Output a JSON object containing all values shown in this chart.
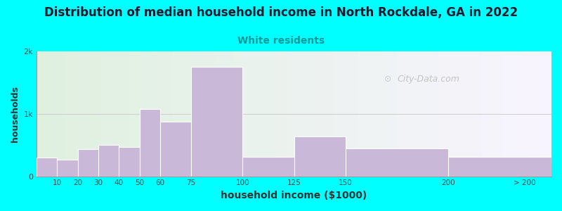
{
  "title": "Distribution of median household income in North Rockdale, GA in 2022",
  "subtitle": "White residents",
  "xlabel": "household income ($1000)",
  "ylabel": "households",
  "background_outer": "#00FFFF",
  "background_inner_left": "#dff0df",
  "background_inner_right": "#f8f4ff",
  "bar_color": "#c9b8d8",
  "bar_edge_color": "#ffffff",
  "title_fontsize": 12,
  "subtitle_fontsize": 10,
  "subtitle_color": "#009999",
  "xlabel_fontsize": 10,
  "ylabel_fontsize": 9,
  "values": [
    300,
    260,
    430,
    500,
    470,
    1080,
    870,
    1750,
    310,
    640,
    450,
    310
  ],
  "bar_lefts": [
    0,
    10,
    20,
    30,
    40,
    50,
    60,
    75,
    100,
    125,
    150,
    200
  ],
  "bar_rights": [
    10,
    20,
    30,
    40,
    50,
    60,
    75,
    100,
    125,
    150,
    200,
    250
  ],
  "ylim": [
    0,
    2000
  ],
  "yticks": [
    0,
    1000,
    2000
  ],
  "ytick_labels": [
    "0",
    "1k",
    "2k"
  ],
  "xtick_positions": [
    10,
    20,
    30,
    40,
    50,
    60,
    75,
    100,
    125,
    150,
    200,
    237
  ],
  "xtick_labels": [
    "10",
    "20",
    "30",
    "40",
    "50",
    "60",
    "75",
    "100",
    "125",
    "150",
    "200",
    "> 200"
  ],
  "xlim": [
    0,
    250
  ],
  "grid_y": 1000,
  "watermark": "City-Data.com"
}
